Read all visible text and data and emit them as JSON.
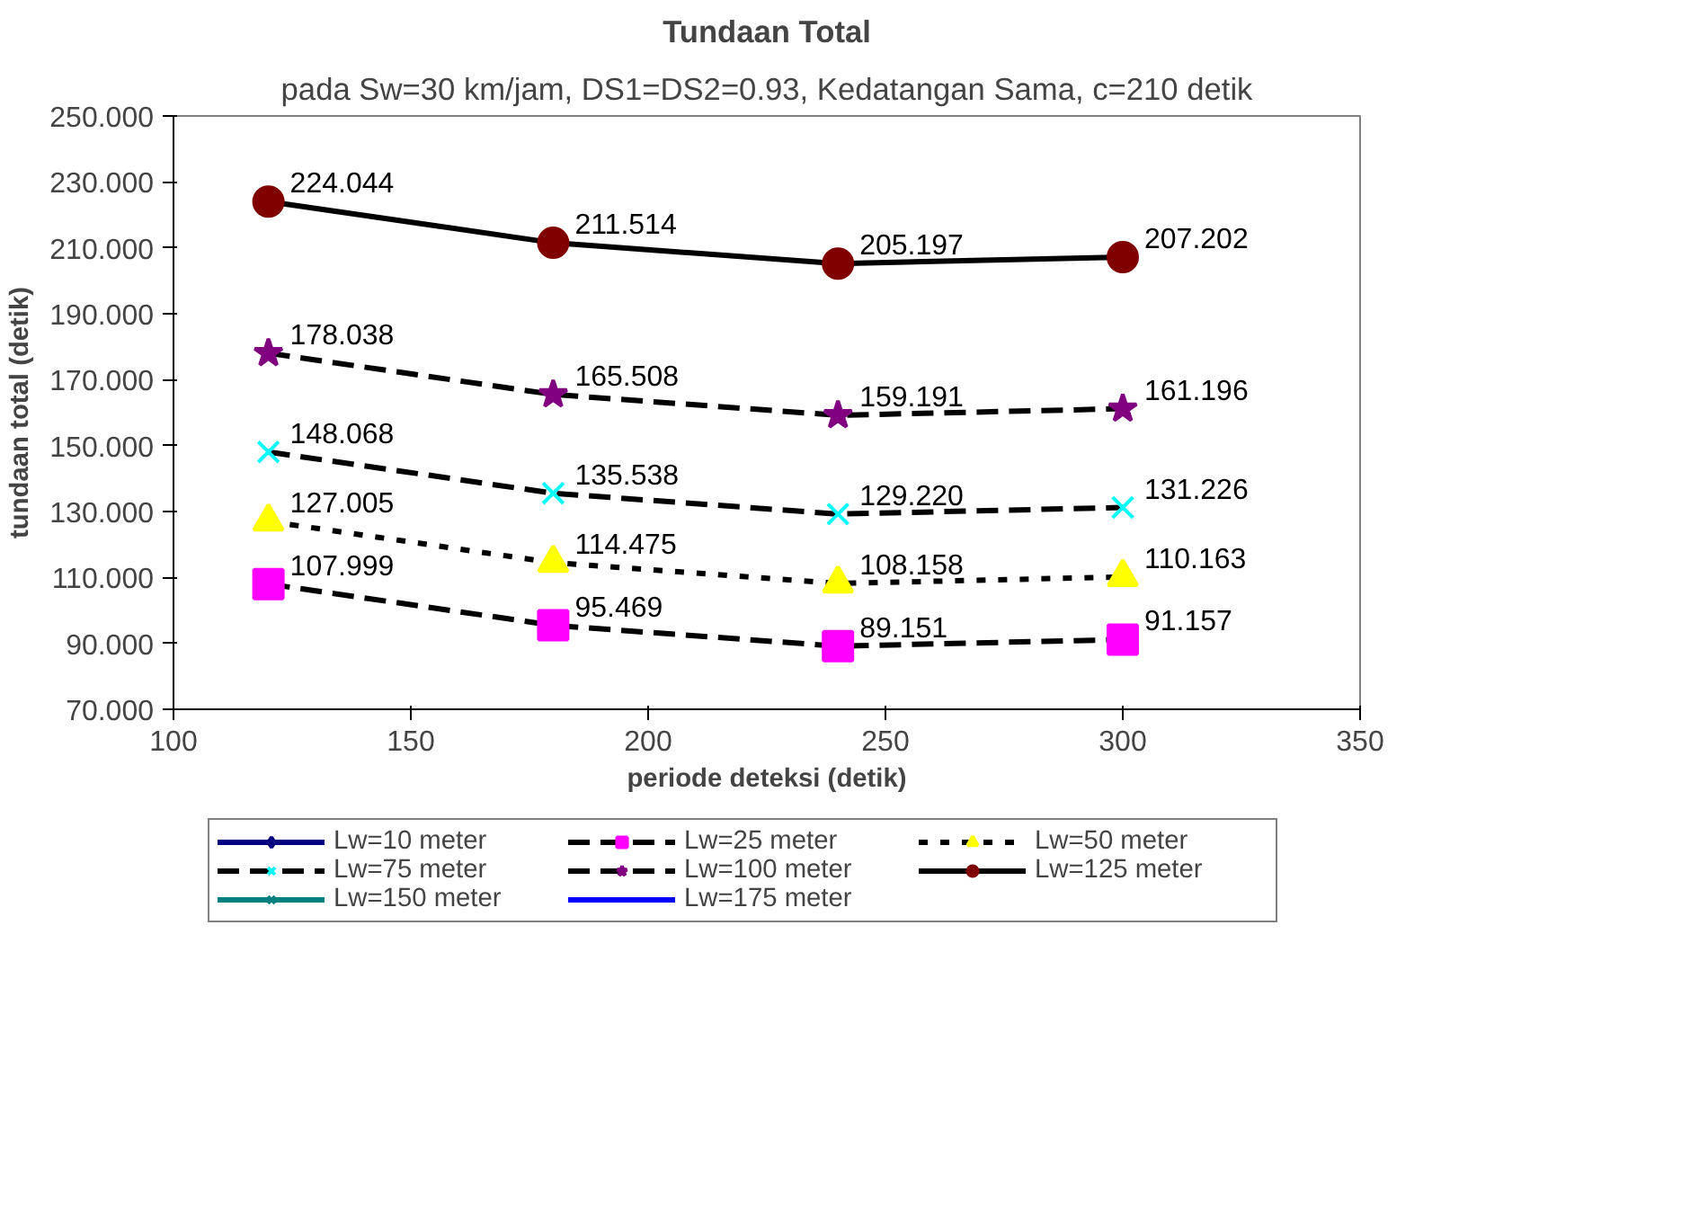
{
  "chart_data": {
    "type": "line",
    "title": "Tundaan Total",
    "subtitle": "pada Sw=30 km/jam, DS1=DS2=0.93, Kedatangan Sama, c=210 detik",
    "xlabel": "periode deteksi (detik)",
    "ylabel": "tundaan total (detik)",
    "x": [
      120,
      180,
      240,
      300
    ],
    "xlim": [
      100,
      350
    ],
    "xticks": [
      100,
      150,
      200,
      250,
      300,
      350
    ],
    "ylim": [
      70,
      250
    ],
    "yticks": [
      {
        "value": 70,
        "label": "70.000"
      },
      {
        "value": 90,
        "label": "90.000"
      },
      {
        "value": 110,
        "label": "110.000"
      },
      {
        "value": 130,
        "label": "130.000"
      },
      {
        "value": 150,
        "label": "150.000"
      },
      {
        "value": 170,
        "label": "170.000"
      },
      {
        "value": 190,
        "label": "190.000"
      },
      {
        "value": 210,
        "label": "210.000"
      },
      {
        "value": 230,
        "label": "230.000"
      },
      {
        "value": 250,
        "label": "250.000"
      }
    ],
    "grid": false,
    "legend": "bottom",
    "series": [
      {
        "name": "Lw=10 meter",
        "color": "#000080",
        "marker": "diamond",
        "line_style": "solid",
        "values": [
          null,
          null,
          null,
          null
        ]
      },
      {
        "name": "Lw=25 meter",
        "color": "#ff00ff",
        "marker": "square",
        "line_style": "dashed",
        "values": [
          107.999,
          95.469,
          89.151,
          91.157
        ],
        "value_labels": [
          "107.999",
          "95.469",
          "89.151",
          "91.157"
        ]
      },
      {
        "name": "Lw=50 meter",
        "color": "#ffff00",
        "marker": "triangle",
        "line_style": "dotted",
        "values": [
          127.005,
          114.475,
          108.158,
          110.163
        ],
        "value_labels": [
          "127.005",
          "114.475",
          "108.158",
          "110.163"
        ]
      },
      {
        "name": "Lw=75 meter",
        "color": "#00ffff",
        "marker": "cross",
        "line_style": "dashed",
        "values": [
          148.068,
          135.538,
          129.22,
          131.226
        ],
        "value_labels": [
          "148.068",
          "135.538",
          "129.220",
          "131.226"
        ]
      },
      {
        "name": "Lw=100 meter",
        "color": "#800080",
        "marker": "star",
        "line_style": "dashed",
        "values": [
          178.038,
          165.508,
          159.191,
          161.196
        ],
        "value_labels": [
          "178.038",
          "165.508",
          "159.191",
          "161.196"
        ]
      },
      {
        "name": "Lw=125 meter",
        "color": "#800000",
        "marker": "circle",
        "line_style": "solid",
        "values": [
          224.044,
          211.514,
          205.197,
          207.202
        ],
        "value_labels": [
          "224.044",
          "211.514",
          "205.197",
          "207.202"
        ]
      },
      {
        "name": "Lw=150 meter",
        "color": "#008080",
        "marker": "cross",
        "line_style": "solid",
        "values": [
          null,
          null,
          null,
          null
        ]
      },
      {
        "name": "Lw=175 meter",
        "color": "#0000ff",
        "marker": "none",
        "line_style": "solid",
        "values": [
          null,
          null,
          null,
          null
        ]
      }
    ]
  }
}
